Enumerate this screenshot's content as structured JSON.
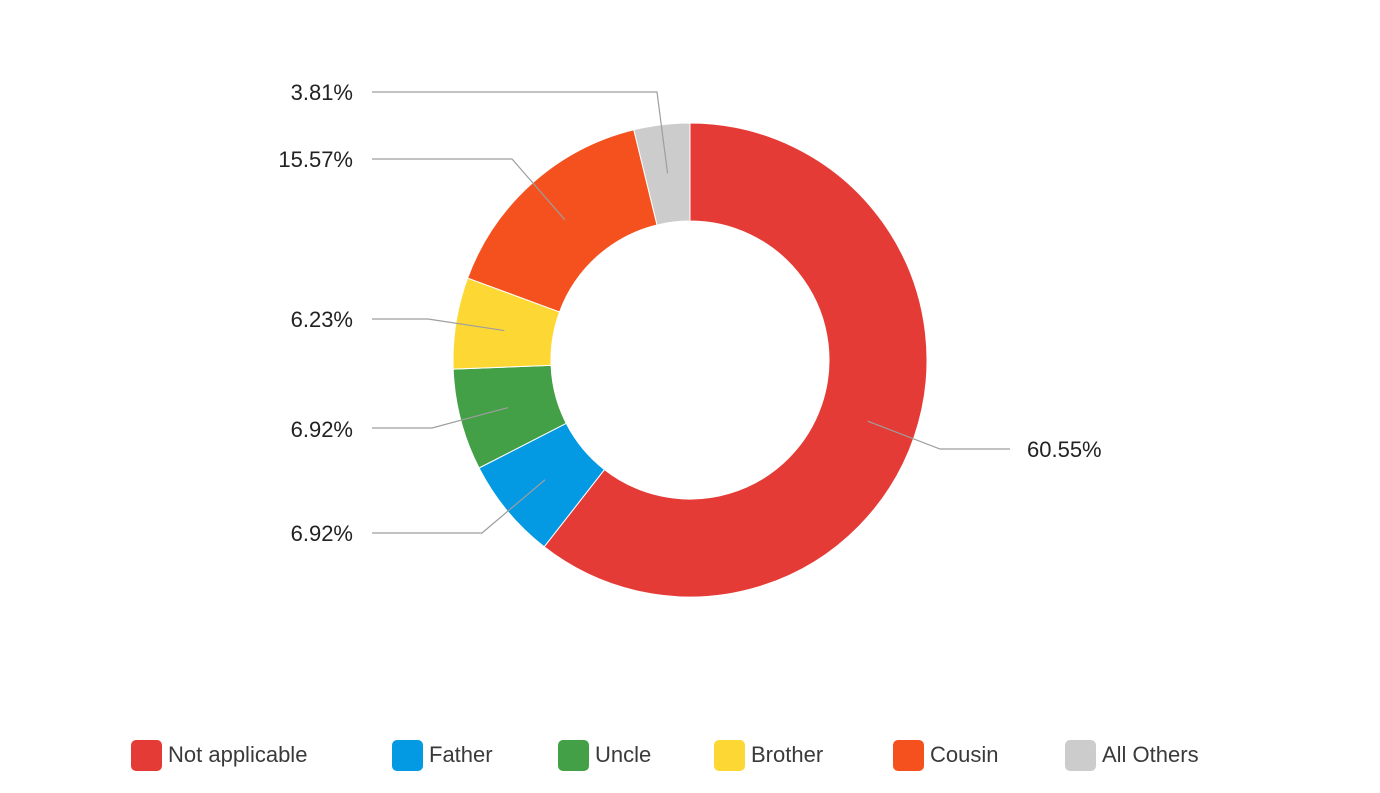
{
  "chart_data": {
    "type": "pie",
    "donut": true,
    "title": "",
    "legend_position": "bottom",
    "slices": [
      {
        "name": "Not applicable",
        "value": 60.55,
        "label": "60.55%",
        "color": "#e53b36"
      },
      {
        "name": "Father",
        "value": 6.92,
        "label": "6.92%",
        "color": "#0499e3"
      },
      {
        "name": "Uncle",
        "value": 6.92,
        "label": "6.92%",
        "color": "#43a047"
      },
      {
        "name": "Brother",
        "value": 6.23,
        "label": "6.23%",
        "color": "#fdd835"
      },
      {
        "name": "Cousin",
        "value": 15.57,
        "label": "15.57%",
        "color": "#f4511e"
      },
      {
        "name": "All Others",
        "value": 3.81,
        "label": "3.81%",
        "color": "#cccccc"
      }
    ]
  }
}
